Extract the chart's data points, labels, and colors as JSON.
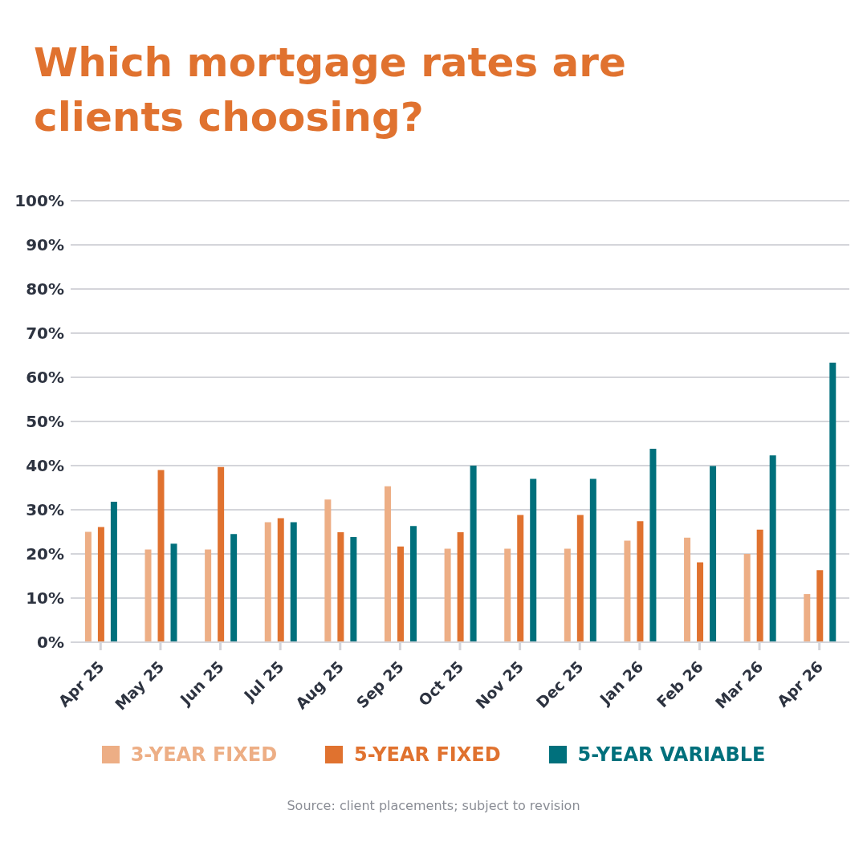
{
  "chart_data": {
    "type": "bar",
    "title": "Which mortgage rates are clients choosing?",
    "categories": [
      "Apr 25",
      "May 25",
      "Jun 25",
      "Jul 25",
      "Aug 25",
      "Sep 25",
      "Oct 25",
      "Nov 25",
      "Dec 25",
      "Jan 26",
      "Feb 26",
      "Mar 26",
      "Apr 26"
    ],
    "series": [
      {
        "name": "3-YEAR FIXED",
        "color": "#edae85",
        "values": [
          25.0,
          21.0,
          21.0,
          27.2,
          32.3,
          35.3,
          21.2,
          21.2,
          21.2,
          23.0,
          23.7,
          20.0,
          10.9
        ]
      },
      {
        "name": "5-YEAR FIXED",
        "color": "#e0722f",
        "values": [
          26.1,
          39.0,
          39.7,
          28.1,
          24.9,
          21.7,
          24.9,
          28.8,
          28.8,
          27.4,
          18.1,
          25.5,
          16.3
        ]
      },
      {
        "name": "5-YEAR VARIABLE",
        "color": "#00707c",
        "values": [
          31.8,
          22.3,
          24.5,
          27.2,
          23.8,
          26.3,
          40.0,
          37.0,
          37.0,
          43.8,
          39.9,
          42.3,
          63.3
        ]
      }
    ],
    "ylim": [
      0,
      100
    ],
    "yticks": [
      {
        "value": 0,
        "label": "0%"
      },
      {
        "value": 10,
        "label": "10%"
      },
      {
        "value": 20,
        "label": "20%"
      },
      {
        "value": 30,
        "label": "30%"
      },
      {
        "value": 40,
        "label": "40%"
      },
      {
        "value": 50,
        "label": "50%"
      },
      {
        "value": 60,
        "label": "60%"
      },
      {
        "value": 70,
        "label": "70%"
      },
      {
        "value": 80,
        "label": "80%"
      },
      {
        "value": 90,
        "label": "90%"
      },
      {
        "value": 100,
        "label": "100%"
      }
    ],
    "grid": "y",
    "legend": "bottom",
    "annotations": [
      "Source: client placements; subject to revision"
    ]
  }
}
